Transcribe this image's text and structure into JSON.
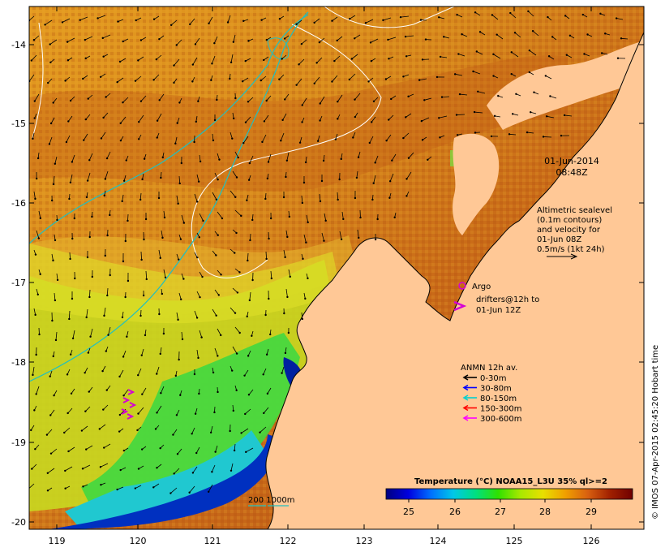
{
  "map": {
    "lat_ticks": [
      "-14",
      "-15",
      "-16",
      "-17",
      "-18",
      "-19",
      "-20"
    ],
    "lon_ticks": [
      "119",
      "120",
      "121",
      "122",
      "123",
      "124",
      "125",
      "126"
    ],
    "date_label": "01-Jun-2014",
    "time_label": "08:48Z"
  },
  "altimetry": {
    "line1": "Altimetric sealevel",
    "line2": "(0.1m contours)",
    "line3": "and velocity for",
    "line4": "01-Jun 08Z",
    "line5": "0.5m/s (1kt 24h)"
  },
  "argo": {
    "label": "Argo",
    "color": "#d400d4"
  },
  "drifters": {
    "line1": "drifters@12h to",
    "line2": "01-Jun 12Z",
    "color": "#d400d4"
  },
  "anmn": {
    "title": "ANMN 12h av.",
    "items": [
      {
        "label": "0-30m",
        "color": "#000000"
      },
      {
        "label": "30-80m",
        "color": "#0000ff"
      },
      {
        "label": "80-150m",
        "color": "#00d0d0"
      },
      {
        "label": "150-300m",
        "color": "#ff0000"
      },
      {
        "label": "300-600m",
        "color": "#ff00ff"
      }
    ]
  },
  "colorbar": {
    "title": "Temperature (°C) NOAA15_L3U 35% ql>=2",
    "ticks": [
      "25",
      "26",
      "27",
      "28",
      "29"
    ],
    "stops": [
      "#000080",
      "#0000e0",
      "#0070ff",
      "#00c8e8",
      "#00e080",
      "#30e000",
      "#a8e800",
      "#e8e000",
      "#f0a000",
      "#d86010",
      "#a02000",
      "#700000"
    ]
  },
  "bathymetry": {
    "label": "200  1000m"
  },
  "credit": "© IMOS 07-Apr-2015 02:45:20 Hobart time"
}
